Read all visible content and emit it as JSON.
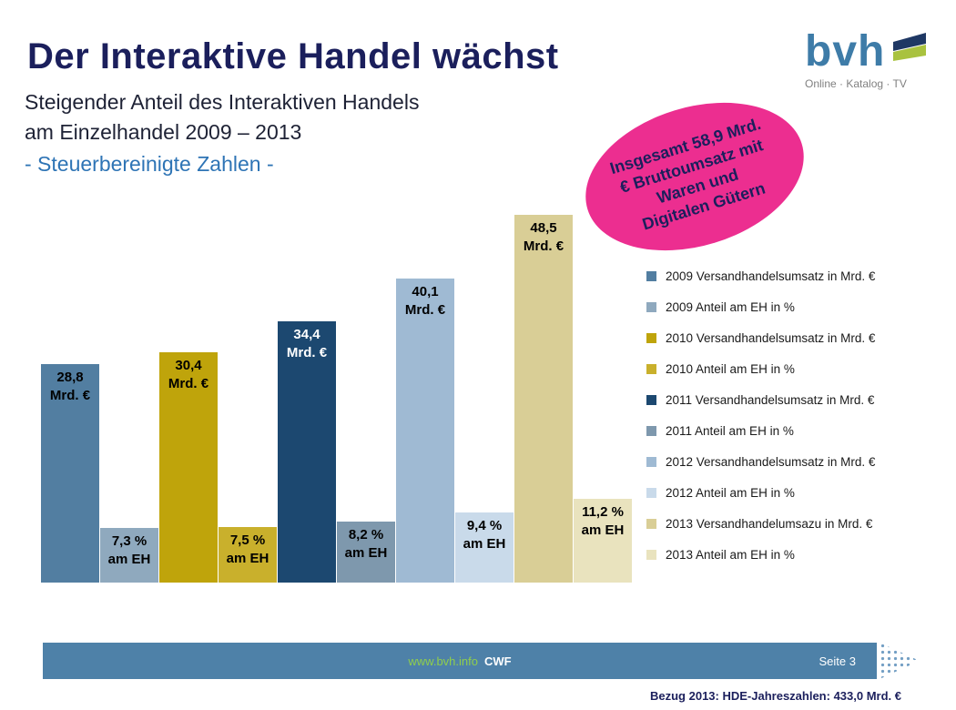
{
  "header": {
    "title": "Der Interaktive Handel wächst",
    "subtitle_line1": "Steigender Anteil des Interaktiven Handels",
    "subtitle_line2": "am Einzelhandel 2009 – 2013",
    "note": "- Steuerbereinigte Zahlen -"
  },
  "logo": {
    "text": "bvh",
    "tagline": "Online · Katalog · TV",
    "brand_color": "#3E7CA8"
  },
  "badge": {
    "color": "#EC2E90",
    "lines": [
      "Insgesamt 58,9 Mrd.",
      "€ Bruttoumsatz mit",
      "Waren und",
      "Digitalen Gütern"
    ]
  },
  "chart_data": {
    "type": "bar",
    "title": "Steigender Anteil des Interaktiven Handels am Einzelhandel 2009 – 2013",
    "categories": [
      "2009",
      "2010",
      "2011",
      "2012",
      "2013"
    ],
    "series": [
      {
        "name": "Versandhandelsumsatz in Mrd. €",
        "values": [
          28.8,
          30.4,
          34.4,
          40.1,
          48.5
        ]
      },
      {
        "name": "Anteil am EH in %",
        "values": [
          7.3,
          7.5,
          8.2,
          9.4,
          11.2
        ]
      }
    ],
    "legend_position": "right",
    "grid": false,
    "scales": {
      "revenue": 8.33,
      "share": 8.2
    },
    "bars": [
      {
        "year": "2009",
        "series": "revenue",
        "value": 28.8,
        "label1": "28,8",
        "label2": "Mrd. €",
        "color": "#527EA1"
      },
      {
        "year": "2009",
        "series": "share",
        "value": 7.3,
        "label1": "7,3 %",
        "label2": "am EH",
        "color": "#8FA9BE"
      },
      {
        "year": "2010",
        "series": "revenue",
        "value": 30.4,
        "label1": "30,4",
        "label2": "Mrd. €",
        "color": "#BFA40B"
      },
      {
        "year": "2010",
        "series": "share",
        "value": 7.5,
        "label1": "7,5 %",
        "label2": "am EH",
        "color": "#C9B02C"
      },
      {
        "year": "2011",
        "series": "revenue",
        "value": 34.4,
        "label1": "34,4",
        "label2": "Mrd. €",
        "color": "#1C4870"
      },
      {
        "year": "2011",
        "series": "share",
        "value": 8.2,
        "label1": "8,2 %",
        "label2": "am EH",
        "color": "#7E98AD"
      },
      {
        "year": "2012",
        "series": "revenue",
        "value": 40.1,
        "label1": "40,1",
        "label2": "Mrd. €",
        "color": "#9FBAD3"
      },
      {
        "year": "2012",
        "series": "share",
        "value": 9.4,
        "label1": "9,4 %",
        "label2": "am EH",
        "color": "#C9DAEA"
      },
      {
        "year": "2013",
        "series": "revenue",
        "value": 48.5,
        "label1": "48,5",
        "label2": "Mrd. €",
        "color": "#D9CE96"
      },
      {
        "year": "2013",
        "series": "share",
        "value": 11.2,
        "label1": "11,2 %",
        "label2": "am EH",
        "color": "#E9E3BE"
      }
    ]
  },
  "legend": {
    "items": [
      {
        "label": "2009 Versandhandelsumsatz in Mrd. €",
        "color": "#527EA1"
      },
      {
        "label": "2009 Anteil am EH in %",
        "color": "#8FA9BE"
      },
      {
        "label": "2010 Versandhandelsumsatz in Mrd. €",
        "color": "#BFA40B"
      },
      {
        "label": "2010 Anteil am EH in %",
        "color": "#C9B02C"
      },
      {
        "label": "2011 Versandhandelsumsatz in Mrd. €",
        "color": "#1C4870"
      },
      {
        "label": "2011 Anteil am EH in %",
        "color": "#7E98AD"
      },
      {
        "label": "2012 Versandhandelsumsatz in Mrd. €",
        "color": "#9FBAD3"
      },
      {
        "label": "2012 Anteil am EH in %",
        "color": "#C9DAEA"
      },
      {
        "label": "2013 Versandhandelumsazu in Mrd. €",
        "color": "#D9CE96"
      },
      {
        "label": "2013 Anteil am EH in %",
        "color": "#E9E3BE"
      }
    ]
  },
  "footer": {
    "url": "www.bvh.info",
    "author": "CWF",
    "page": "Seite 3",
    "band_color": "#4E81A8",
    "url_color": "#90CE4C"
  },
  "bottom_note": "Bezug 2013: HDE-Jahreszahlen: 433,0 Mrd. €"
}
